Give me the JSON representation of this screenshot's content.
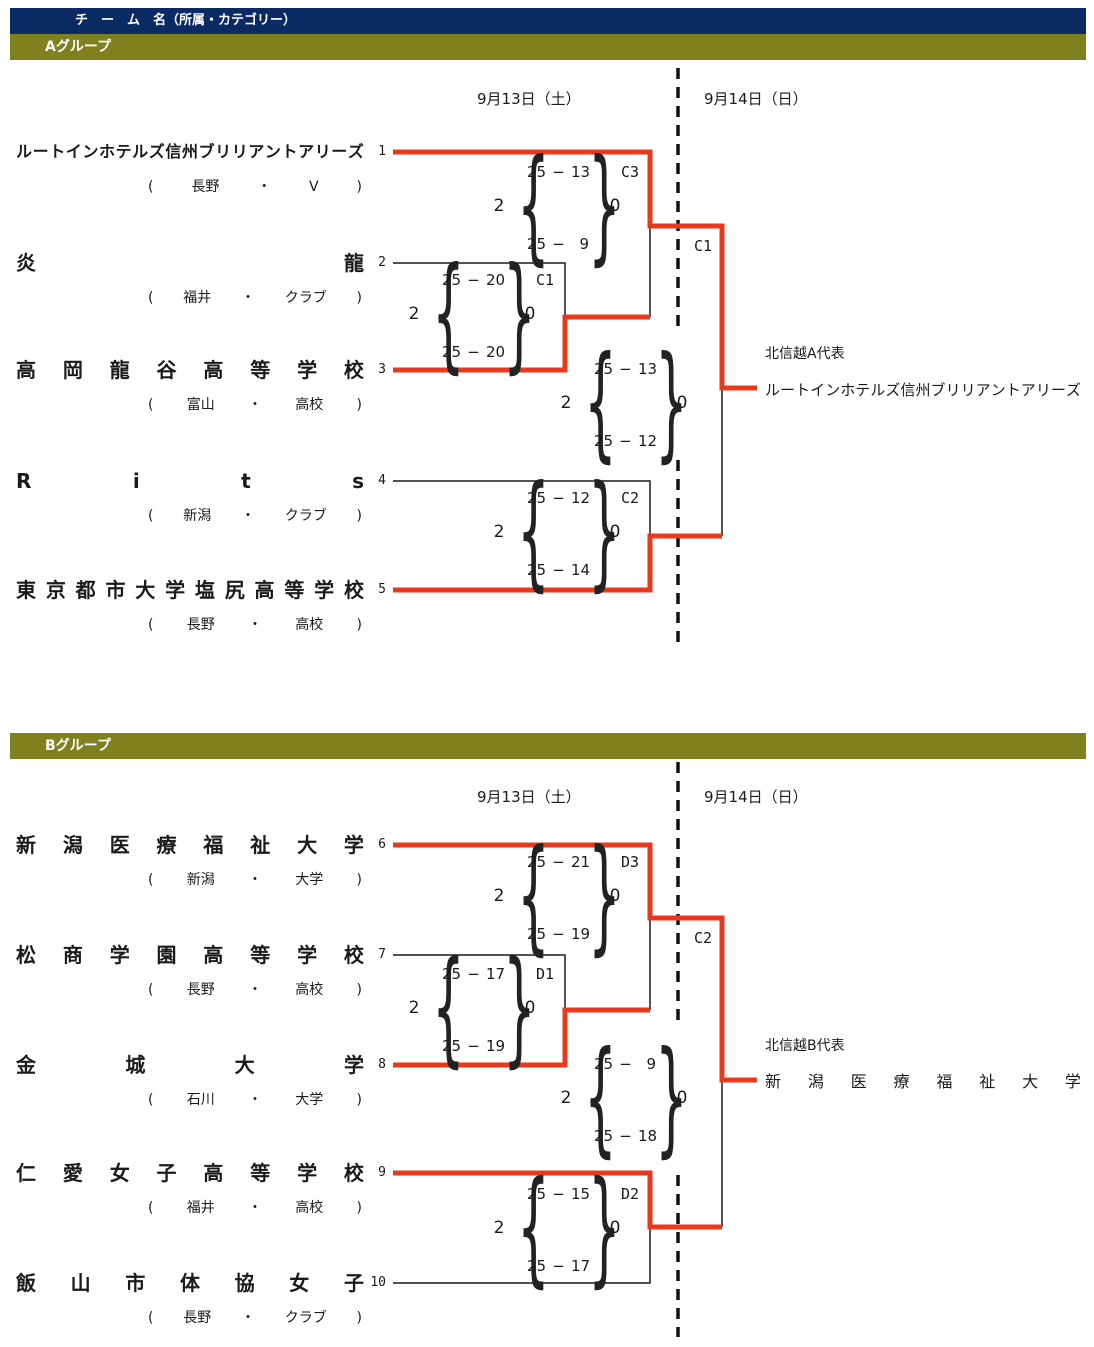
{
  "colors": {
    "navy": "#0a2a63",
    "olive": "#81801f",
    "red": "#e8391d",
    "line": "#1a1a1a"
  },
  "symbols": {
    "open": "(",
    "close": ")",
    "dot": "・",
    "sep": "−",
    "brace_l": "{",
    "brace_r": "}"
  },
  "header": {
    "title": "チ　ー　ム　名（所属・カテゴリー）"
  },
  "groups": [
    {
      "label": "Aグループ",
      "dates": [
        "9月13日（土）",
        "9月14日（日）"
      ],
      "teams": [
        {
          "seed": "1",
          "name": "ルートインホテルズ信州ブリリアントアリーズ",
          "prefecture": "長野",
          "category": "V"
        },
        {
          "seed": "2",
          "name": "炎龍",
          "prefecture": "福井",
          "category": "クラブ"
        },
        {
          "seed": "3",
          "name": "高岡龍谷高等学校",
          "prefecture": "富山",
          "category": "高校"
        },
        {
          "seed": "4",
          "name": "Rits",
          "prefecture": "新潟",
          "category": "クラブ"
        },
        {
          "seed": "5",
          "name": "東京都市大学塩尻高等学校",
          "prefecture": "長野",
          "category": "高校"
        }
      ],
      "round1_matches": [
        {
          "label": "C3",
          "score_left": "2",
          "score_right": "0",
          "sets": [
            [
              "25",
              "13"
            ],
            [
              "25",
              "9"
            ]
          ]
        },
        {
          "label": "C1",
          "score_left": "2",
          "score_right": "0",
          "sets": [
            [
              "25",
              "20"
            ],
            [
              "25",
              "20"
            ]
          ]
        },
        {
          "label": "C2",
          "score_left": "2",
          "score_right": "0",
          "sets": [
            [
              "25",
              "12"
            ],
            [
              "25",
              "14"
            ]
          ]
        }
      ],
      "final_match": {
        "label": "C1",
        "score_left": "2",
        "score_right": "0",
        "sets": [
          [
            "25",
            "13"
          ],
          [
            "25",
            "12"
          ]
        ]
      },
      "winner": {
        "title": "北信越A代表",
        "name": "ルートインホテルズ信州ブリリアントアリーズ"
      }
    },
    {
      "label": "Bグループ",
      "dates": [
        "9月13日（土）",
        "9月14日（日）"
      ],
      "teams": [
        {
          "seed": "6",
          "name": "新潟医療福祉大学",
          "prefecture": "新潟",
          "category": "大学"
        },
        {
          "seed": "7",
          "name": "松商学園高等学校",
          "prefecture": "長野",
          "category": "高校"
        },
        {
          "seed": "8",
          "name": "金城大学",
          "prefecture": "石川",
          "category": "大学"
        },
        {
          "seed": "9",
          "name": "仁愛女子高等学校",
          "prefecture": "福井",
          "category": "高校"
        },
        {
          "seed": "10",
          "name": "飯山市体協女子",
          "prefecture": "長野",
          "category": "クラブ"
        }
      ],
      "round1_matches": [
        {
          "label": "D3",
          "score_left": "2",
          "score_right": "0",
          "sets": [
            [
              "25",
              "21"
            ],
            [
              "25",
              "19"
            ]
          ]
        },
        {
          "label": "D1",
          "score_left": "2",
          "score_right": "0",
          "sets": [
            [
              "25",
              "17"
            ],
            [
              "25",
              "19"
            ]
          ]
        },
        {
          "label": "D2",
          "score_left": "2",
          "score_right": "0",
          "sets": [
            [
              "25",
              "15"
            ],
            [
              "25",
              "17"
            ]
          ]
        }
      ],
      "final_match": {
        "label": "C2",
        "score_left": "2",
        "score_right": "0",
        "sets": [
          [
            "25",
            "9"
          ],
          [
            "25",
            "18"
          ]
        ]
      },
      "winner": {
        "title": "北信越B代表",
        "name": "新潟医療福祉大学"
      }
    }
  ]
}
